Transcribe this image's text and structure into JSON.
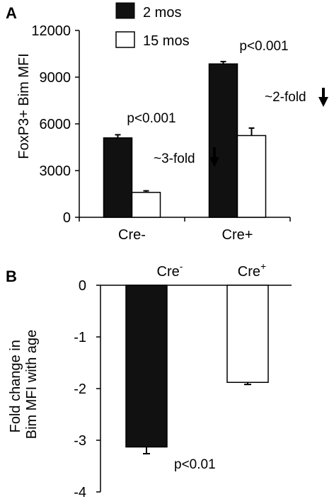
{
  "panels": {
    "a": {
      "letter": "A"
    },
    "b": {
      "letter": "B"
    }
  },
  "colors": {
    "series_2mos": "#111111",
    "series_15mos": "#ffffff",
    "axis": "#000000"
  },
  "chart_data": [
    {
      "type": "bar",
      "panel": "A",
      "ylabel": "FoxP3+ Bim MFI",
      "xlabel": "",
      "categories": [
        "Cre-",
        "Cre+"
      ],
      "series": [
        {
          "name": "2 mos",
          "values": [
            5100,
            9850
          ],
          "errors": [
            200,
            150
          ]
        },
        {
          "name": "15 mos",
          "values": [
            1600,
            5250
          ],
          "errors": [
            100,
            480
          ]
        }
      ],
      "ylim": [
        0,
        12000
      ],
      "yticks": [
        "0",
        "3000",
        "6000",
        "9000",
        "12000"
      ],
      "legend": "top-left",
      "annotations": {
        "p_values": [
          "p<0.001",
          "p<0.001"
        ],
        "fold_labels": [
          "~3-fold",
          "~2-fold"
        ]
      }
    },
    {
      "type": "bar",
      "panel": "B",
      "ylabel": "Fold change in Bim MFI with age",
      "ylabel_lines": [
        "Fold change in",
        "Bim MFI with age"
      ],
      "xlabel": "",
      "categories": [
        {
          "base": "Cre",
          "sup": "-"
        },
        {
          "base": "Cre",
          "sup": "+"
        }
      ],
      "values": [
        -3.13,
        -1.88
      ],
      "errors": [
        0.13,
        0.04
      ],
      "fills": [
        "#111111",
        "#ffffff"
      ],
      "ylim": [
        -4,
        0
      ],
      "yticks": [
        "0",
        "-1",
        "-2",
        "-3",
        "-4"
      ],
      "annotations": {
        "p_value": "p<0.01"
      }
    }
  ]
}
